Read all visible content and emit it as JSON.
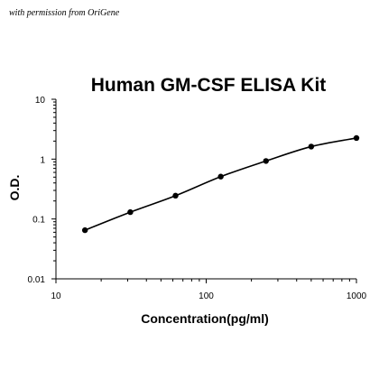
{
  "credit_text": "with permission from OriGene",
  "chart_data": {
    "type": "scatter",
    "title": "Human GM-CSF ELISA Kit",
    "xlabel": "Concentration(pg/ml)",
    "ylabel": "O.D.",
    "x_scale": "log",
    "y_scale": "log",
    "xlim": [
      10,
      1000
    ],
    "ylim": [
      0.01,
      10
    ],
    "x_ticks": [
      10,
      100,
      1000
    ],
    "x_tick_labels": [
      "10",
      "100",
      "1000"
    ],
    "y_ticks": [
      0.01,
      0.1,
      1,
      10
    ],
    "y_tick_labels": [
      "0.01",
      "0.1",
      "1",
      "10"
    ],
    "grid": false,
    "legend": "none",
    "series": [
      {
        "x": [
          15.6,
          31.25,
          62.5,
          125,
          250,
          500,
          1000
        ],
        "y": [
          0.065,
          0.13,
          0.245,
          0.51,
          0.93,
          1.62,
          2.25
        ],
        "marker_color": "#000000",
        "fit_line": true
      }
    ]
  }
}
